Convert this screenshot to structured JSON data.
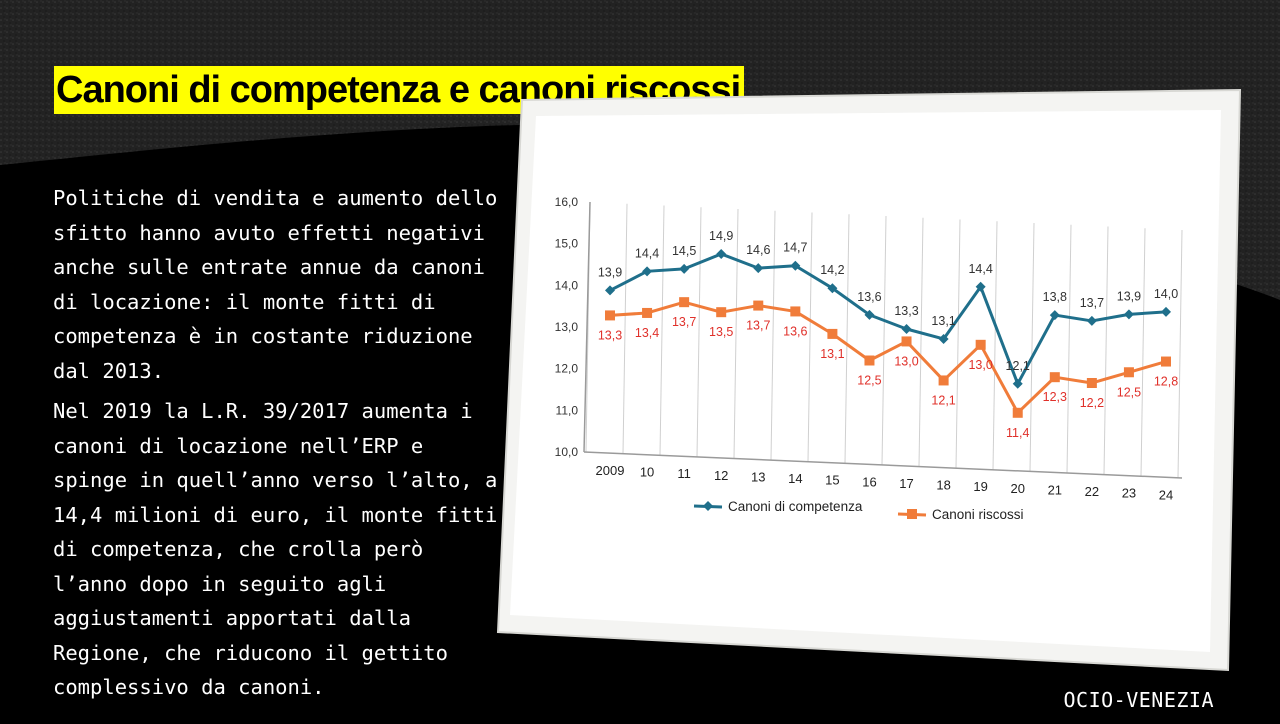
{
  "title": "Canoni di competenza e canoni riscossi",
  "paragraphs": [
    "Politiche di vendita e aumento dello sfitto hanno avuto effetti negativi anche sulle entrate annue da canoni di locazione: il monte fitti di competenza è in costante riduzione dal 2013.",
    "Nel 2019 la L.R. 39/2017 aumenta i canoni di locazione nell’ERP e spinge in quell’anno verso l’alto, a 14,4 milioni di euro, il monte fitti di competenza, che crolla però l’anno dopo in seguito agli aggiustamenti apportati dalla Regione, che riducono il gettito complessivo da canoni."
  ],
  "footer": "OCIO-VENEZIA",
  "colors": {
    "accent": "#ffff00",
    "competenza": "#1f6f8b",
    "riscossi": "#f07c3a",
    "riscossi_label": "#e0302a"
  },
  "chart_data": {
    "type": "line",
    "categories": [
      "2009",
      "10",
      "11",
      "12",
      "13",
      "14",
      "15",
      "16",
      "17",
      "18",
      "19",
      "20",
      "21",
      "22",
      "23",
      "24"
    ],
    "ylim": [
      10.0,
      16.0
    ],
    "yticks": [
      "10,0",
      "11,0",
      "12,0",
      "13,0",
      "14,0",
      "15,0",
      "16,0"
    ],
    "grid": true,
    "legend_placement": "bottom",
    "series": [
      {
        "name": "Canoni di competenza",
        "values": [
          13.9,
          14.4,
          14.5,
          14.9,
          14.6,
          14.7,
          14.2,
          13.6,
          13.3,
          13.1,
          14.4,
          12.1,
          13.8,
          13.7,
          13.9,
          14.0
        ],
        "labels": [
          "13,9",
          "14,4",
          "14,5",
          "14,9",
          "14,6",
          "14,7",
          "14,2",
          "13,6",
          "13,3",
          "13,1",
          "14,4",
          "12,1",
          "13,8",
          "13,7",
          "13,9",
          "14,0"
        ],
        "marker": "diamond"
      },
      {
        "name": "Canoni riscossi",
        "values": [
          13.3,
          13.4,
          13.7,
          13.5,
          13.7,
          13.6,
          13.1,
          12.5,
          13.0,
          12.1,
          13.0,
          11.4,
          12.3,
          12.2,
          12.5,
          12.8
        ],
        "labels": [
          "13,3",
          "13,4",
          "13,7",
          "13,5",
          "13,7",
          "13,6",
          "13,1",
          "12,5",
          "13,0",
          "12,1",
          "13,0",
          "11,4",
          "12,3",
          "12,2",
          "12,5",
          "12,8"
        ],
        "marker": "square"
      }
    ]
  }
}
